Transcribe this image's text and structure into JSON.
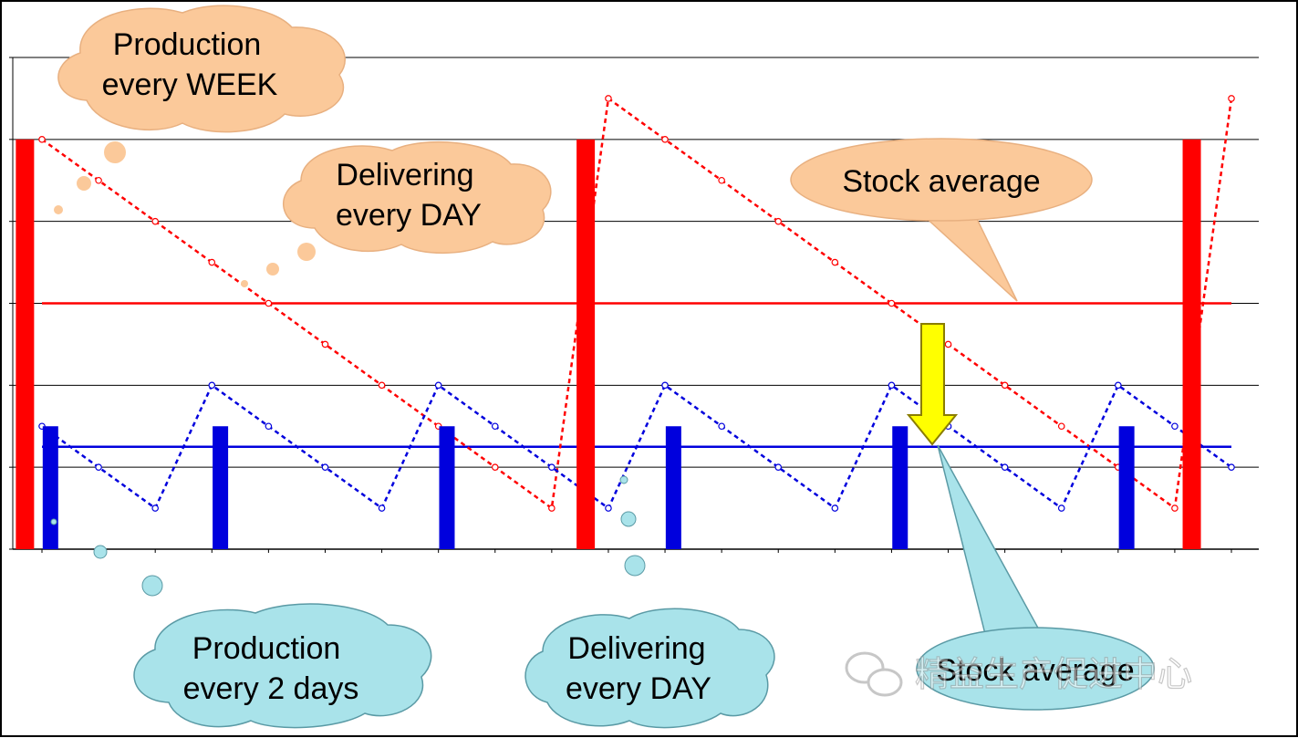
{
  "callouts": {
    "weekly_production": [
      "Production",
      "every WEEK"
    ],
    "weekly_delivering": [
      "Delivering",
      "every DAY"
    ],
    "weekly_average": [
      "Stock average"
    ],
    "twoday_production": [
      "Production",
      "every 2 days"
    ],
    "twoday_delivering": [
      "Delivering",
      "every DAY"
    ],
    "twoday_average": [
      "Stock average"
    ]
  },
  "watermark": "精益生产促进中心",
  "colors": {
    "weekly": "#ff0000",
    "two_day": "#0000dd",
    "arrow": "#ffff00",
    "orange_cloud": "#fbc99a",
    "blue_cloud": "#a9e3ea"
  },
  "icons": {
    "watermark_logo": "wechat-icon"
  },
  "chart_data": {
    "type": "line",
    "x": [
      0,
      1,
      2,
      3,
      4,
      5,
      6,
      7,
      8,
      9,
      10,
      11,
      12,
      13,
      14,
      15,
      16,
      17,
      18,
      19,
      20,
      21
    ],
    "xlim": [
      -0.5,
      21.5
    ],
    "ylim": [
      0,
      6
    ],
    "grid": true,
    "series": [
      {
        "id": "weekly_stock",
        "style": "dotted-line-with-markers",
        "color": "#ff0000",
        "values": [
          5,
          4.5,
          4,
          3.5,
          3,
          2.5,
          2,
          1.5,
          1,
          0.5,
          5.5,
          5,
          4.5,
          4,
          3.5,
          3,
          2.5,
          2,
          1.5,
          1,
          0.5,
          5.5
        ]
      },
      {
        "id": "two_day_stock",
        "style": "dotted-line-with-markers",
        "color": "#0000dd",
        "values": [
          1.5,
          1,
          0.5,
          2,
          1.5,
          1,
          0.5,
          2,
          1.5,
          1,
          0.5,
          2,
          1.5,
          1,
          0.5,
          2,
          1.5,
          1,
          0.5,
          2,
          1.5,
          1
        ]
      },
      {
        "id": "weekly_production_bars",
        "style": "bar",
        "color": "#ff0000",
        "x": [
          -0.3,
          9.6,
          20.3
        ],
        "values": [
          5,
          5,
          5
        ]
      },
      {
        "id": "two_day_production_bars",
        "style": "bar",
        "color": "#0000dd",
        "x": [
          0.15,
          3.15,
          7.15,
          11.15,
          15.15,
          19.15
        ],
        "values": [
          1.5,
          1.5,
          1.5,
          1.5,
          1.5,
          1.5
        ]
      },
      {
        "id": "weekly_average",
        "style": "line",
        "color": "#ff0000",
        "x": [
          0,
          21
        ],
        "values": [
          3,
          3
        ]
      },
      {
        "id": "two_day_average",
        "style": "line",
        "color": "#0000dd",
        "x": [
          0,
          21
        ],
        "values": [
          1.25,
          1.25
        ]
      }
    ]
  }
}
